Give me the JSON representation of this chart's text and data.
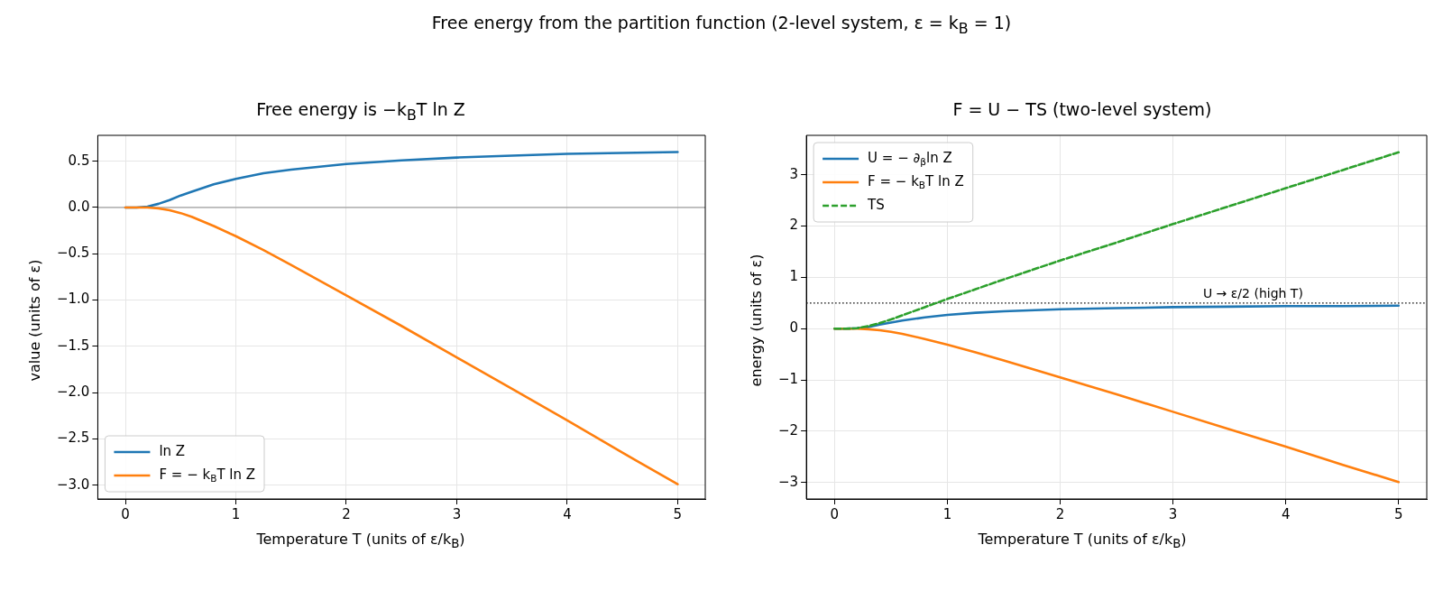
{
  "chart_data": [
    {
      "type": "line",
      "title": "Free energy is −k$_{B}$T ln Z",
      "xlabel": "Temperature T  (units of ε/k$_{B}$)",
      "ylabel": "value (units of ε)",
      "annotations": [
        "Free energy from the partition function (2-level system, ε = k$_{B}$ = 1)"
      ],
      "x": [
        0,
        0.1,
        0.2,
        0.3,
        0.4,
        0.5,
        0.6,
        0.8,
        1,
        1.25,
        1.5,
        2,
        2.5,
        3,
        3.5,
        4,
        4.5,
        5
      ],
      "series": [
        {
          "name": "ln Z",
          "color": "#1f77b4",
          "values": [
            0,
            0,
            0.01,
            0.04,
            0.08,
            0.13,
            0.17,
            0.25,
            0.31,
            0.37,
            0.41,
            0.47,
            0.51,
            0.54,
            0.56,
            0.58,
            0.59,
            0.6
          ]
        },
        {
          "name": "F = − k$_{B}$T ln Z",
          "color": "#ff7f0e",
          "values": [
            0,
            0,
            0,
            -0.01,
            -0.03,
            -0.06,
            -0.1,
            -0.2,
            -0.31,
            -0.46,
            -0.62,
            -0.95,
            -1.28,
            -1.62,
            -1.96,
            -2.3,
            -2.65,
            -2.99
          ]
        }
      ],
      "xlim": [
        -0.25,
        5.25
      ],
      "xticks": [
        0,
        1,
        2,
        3,
        4,
        5
      ],
      "ylim": [
        -3.15,
        0.78
      ],
      "yticks": [
        {
          "value": -3,
          "label": "−3.0"
        },
        {
          "value": -2.5,
          "label": "−2.5"
        },
        {
          "value": -2,
          "label": "−2.0"
        },
        {
          "value": -1.5,
          "label": "−1.5"
        },
        {
          "value": -1,
          "label": "−1.0"
        },
        {
          "value": -0.5,
          "label": "−0.5"
        },
        {
          "value": 0,
          "label": "0.0"
        },
        {
          "value": 0.5,
          "label": "0.5"
        }
      ],
      "ref_lines": [
        {
          "axis": "y",
          "value": 0,
          "color": "#808080",
          "line_style": "solid"
        }
      ],
      "grid": true,
      "legend": "bottom left",
      "line_style": "solid",
      "marker": "none"
    },
    {
      "type": "line",
      "title": "F = U − TS  (two-level system)",
      "xlabel": "Temperature T  (units of ε/k$_{B}$)",
      "ylabel": "energy (units of ε)",
      "x": [
        0,
        0.1,
        0.2,
        0.3,
        0.4,
        0.5,
        0.6,
        0.8,
        1,
        1.25,
        1.5,
        2,
        2.5,
        3,
        3.5,
        4,
        4.5,
        5
      ],
      "series": [
        {
          "name": "U = − ∂$_{β}$ln Z",
          "color": "#1f77b4",
          "values": [
            0,
            0,
            0.01,
            0.03,
            0.08,
            0.12,
            0.16,
            0.22,
            0.27,
            0.31,
            0.34,
            0.38,
            0.4,
            0.42,
            0.43,
            0.44,
            0.44,
            0.45
          ]
        },
        {
          "name": "F = − k$_{B}$T ln Z",
          "color": "#ff7f0e",
          "values": [
            0,
            0,
            0,
            -0.01,
            -0.03,
            -0.06,
            -0.1,
            -0.2,
            -0.31,
            -0.46,
            -0.62,
            -0.95,
            -1.28,
            -1.62,
            -1.96,
            -2.3,
            -2.65,
            -2.99
          ]
        },
        {
          "name": "TS",
          "color": "#2ca02c",
          "line_style": "dashed",
          "values": [
            0,
            0,
            0.01,
            0.05,
            0.11,
            0.18,
            0.26,
            0.42,
            0.58,
            0.77,
            0.96,
            1.33,
            1.68,
            2.04,
            2.39,
            2.74,
            3.09,
            3.44
          ]
        }
      ],
      "xlim": [
        -0.25,
        5.25
      ],
      "xticks": [
        0,
        1,
        2,
        3,
        4,
        5
      ],
      "ylim": [
        -3.32,
        3.77
      ],
      "yticks": [
        {
          "value": -3,
          "label": "−3"
        },
        {
          "value": -2,
          "label": "−2"
        },
        {
          "value": -1,
          "label": "−1"
        },
        0,
        1,
        2,
        3
      ],
      "ref_lines": [
        {
          "axis": "y",
          "value": 0.5,
          "color": "#000000",
          "line_style": "dotted",
          "label": "U → ε/2 (high T)"
        }
      ],
      "grid": true,
      "legend": "top left",
      "line_style": "solid",
      "marker": "none"
    }
  ]
}
